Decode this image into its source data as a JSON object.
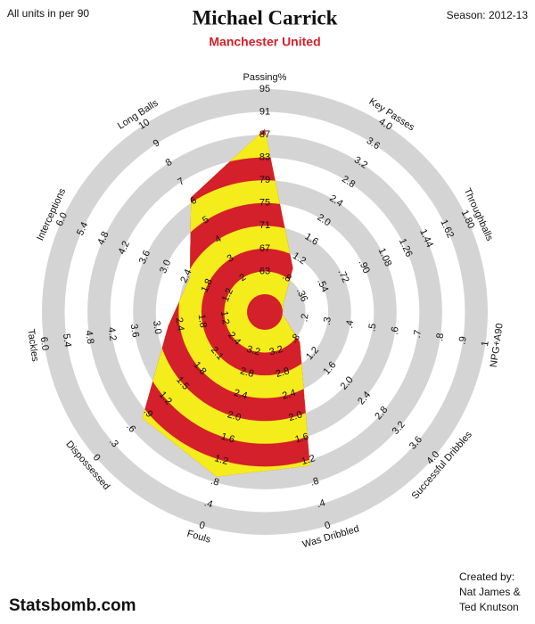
{
  "chart_data": {
    "type": "radar",
    "title": "Michael Carrick",
    "subtitle": "Manchester United",
    "units_note": "All units in per 90",
    "season": "Season: 2012-13",
    "site": "Statsbomb.com",
    "credit": [
      "Created by:",
      "Nat James &",
      "Ted Knutson"
    ],
    "stripe_colors": [
      "#f5ec1c",
      "#d3202a"
    ],
    "ring_colors": [
      "#d4d4d4",
      "#ffffff"
    ],
    "axes": [
      {
        "name": "Passing%",
        "lim": [
          59,
          95
        ],
        "ticks": [
          63,
          67,
          71,
          75,
          79,
          83,
          87,
          91,
          95
        ]
      },
      {
        "name": "Key Passes",
        "lim": [
          0.4,
          4
        ],
        "ticks": [
          {
            "value": 0.8,
            "label": ".8"
          },
          1.2,
          1.6,
          {
            "value": 2,
            "label": "2.0"
          },
          2.4,
          2.8,
          3.2,
          3.6,
          {
            "value": 4,
            "label": "4.0"
          }
        ]
      },
      {
        "name": "Throughballs",
        "lim": [
          0.18,
          1.8
        ],
        "ticks": [
          {
            "value": 0.36,
            "label": ".36"
          },
          {
            "value": 0.54,
            "label": ".54"
          },
          {
            "value": 0.72,
            "label": ".72"
          },
          {
            "value": 0.9,
            "label": ".90"
          },
          1.08,
          1.26,
          1.44,
          1.62,
          {
            "value": 1.8,
            "label": "1.80"
          }
        ]
      },
      {
        "name": "NPG+A90",
        "lim": [
          0.1,
          1
        ],
        "ticks": [
          {
            "value": 0.2,
            "label": ".2"
          },
          {
            "value": 0.3,
            "label": ".3"
          },
          {
            "value": 0.4,
            "label": ".4"
          },
          {
            "value": 0.5,
            "label": ".5"
          },
          {
            "value": 0.6,
            "label": ".6"
          },
          {
            "value": 0.7,
            "label": ".7"
          },
          {
            "value": 0.8,
            "label": ".8"
          },
          {
            "value": 0.9,
            "label": ".9"
          },
          1
        ]
      },
      {
        "name": "Successful Dribbles",
        "lim": [
          0.4,
          4
        ],
        "ticks": [
          {
            "value": 0.8,
            "label": ".8"
          },
          1.2,
          1.6,
          {
            "value": 2,
            "label": "2.0"
          },
          2.4,
          2.8,
          3.2,
          3.6,
          {
            "value": 4,
            "label": "4.0"
          }
        ]
      },
      {
        "name": "Was Dribbled",
        "lim": [
          3.6,
          0
        ],
        "ticks": [
          3.2,
          2.8,
          2.4,
          {
            "value": 2,
            "label": "2.0"
          },
          1.6,
          1.2,
          {
            "value": 0.8,
            "label": ".8"
          },
          {
            "value": 0.4,
            "label": ".4"
          },
          0
        ]
      },
      {
        "name": "Fouls",
        "lim": [
          3.6,
          0
        ],
        "ticks": [
          3.2,
          2.8,
          2.4,
          {
            "value": 2,
            "label": "2.0"
          },
          1.6,
          1.2,
          {
            "value": 0.8,
            "label": ".8"
          },
          {
            "value": 0.4,
            "label": ".4"
          },
          0
        ]
      },
      {
        "name": "Dispossessed",
        "lim": [
          2.7,
          0
        ],
        "ticks": [
          2.4,
          2.1,
          1.8,
          1.5,
          1.2,
          {
            "value": 0.9,
            "label": ".9"
          },
          {
            "value": 0.6,
            "label": ".6"
          },
          {
            "value": 0.3,
            "label": ".3"
          },
          0
        ]
      },
      {
        "name": "Tackles",
        "lim": [
          0.6,
          6
        ],
        "ticks": [
          1.2,
          1.8,
          2.4,
          {
            "value": 3,
            "label": "3.0"
          },
          3.6,
          4.2,
          4.8,
          5.4,
          {
            "value": 6,
            "label": "6.0"
          }
        ]
      },
      {
        "name": "Interceptions",
        "lim": [
          0.6,
          6
        ],
        "ticks": [
          1.2,
          1.8,
          2.4,
          {
            "value": 3,
            "label": "3.0"
          },
          3.6,
          4.2,
          4.8,
          5.4,
          {
            "value": 6,
            "label": "6.0"
          }
        ]
      },
      {
        "name": "Long Balls",
        "lim": [
          1,
          10
        ],
        "ticks": [
          2,
          3,
          4,
          5,
          6,
          7,
          8,
          9,
          10
        ]
      }
    ],
    "values": [
      88,
      1.0,
      0.2,
      0.1,
      0.9,
      1.1,
      0.9,
      0.8,
      2.7,
      2.3,
      6.2
    ]
  }
}
